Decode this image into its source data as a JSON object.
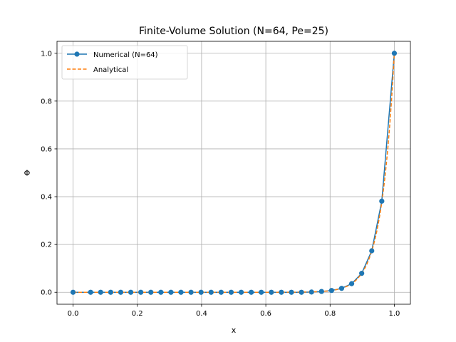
{
  "chart_data": {
    "type": "line",
    "title": "Finite-Volume Solution (N=64, Pe=25)",
    "xlabel": "x",
    "ylabel": "Φ",
    "xlim": [
      -0.05,
      1.05
    ],
    "ylim": [
      -0.05,
      1.05
    ],
    "xticks": [
      0.0,
      0.2,
      0.4,
      0.6,
      0.8,
      1.0
    ],
    "xtick_labels": [
      "0.0",
      "0.2",
      "0.4",
      "0.6",
      "0.8",
      "1.0"
    ],
    "yticks": [
      0.0,
      0.2,
      0.4,
      0.6,
      0.8,
      1.0
    ],
    "ytick_labels": [
      "0.0",
      "0.2",
      "0.4",
      "0.6",
      "0.8",
      "1.0"
    ],
    "grid": true,
    "legend_position": "top-left",
    "pe": 25,
    "series": [
      {
        "name": "Numerical (N=64)",
        "color": "#1f77b4",
        "style": "solid-with-markers",
        "x": [
          0,
          0.0547,
          0.0859,
          0.1172,
          0.1484,
          0.1797,
          0.2109,
          0.2422,
          0.2734,
          0.3047,
          0.3359,
          0.3672,
          0.3984,
          0.4297,
          0.4609,
          0.4922,
          0.5234,
          0.5547,
          0.5859,
          0.6172,
          0.6484,
          0.6797,
          0.7109,
          0.7422,
          0.7734,
          0.8047,
          0.8359,
          0.8672,
          0.8984,
          0.9297,
          0.9609,
          1.0
        ],
        "y": [
          0,
          0,
          0,
          0,
          0,
          0,
          0,
          0,
          0,
          0,
          0,
          0,
          0,
          0,
          0,
          0,
          0,
          0,
          0,
          0,
          0,
          0,
          0,
          0.0011,
          0.0034,
          0.0075,
          0.0165,
          0.0361,
          0.0793,
          0.1736,
          0.3812,
          1.0
        ]
      },
      {
        "name": "Analytical",
        "color": "#ff7f0e",
        "style": "dashed",
        "x": [
          0,
          0.0547,
          0.0859,
          0.1172,
          0.1484,
          0.1797,
          0.2109,
          0.2422,
          0.2734,
          0.3047,
          0.3359,
          0.3672,
          0.3984,
          0.4297,
          0.4609,
          0.4922,
          0.5234,
          0.5547,
          0.5859,
          0.6172,
          0.6484,
          0.6797,
          0.7109,
          0.7422,
          0.7734,
          0.8047,
          0.8359,
          0.8672,
          0.8984,
          0.9297,
          0.9609,
          1.0
        ],
        "y": [
          0,
          0,
          0,
          0,
          0,
          0,
          0,
          0,
          0,
          0,
          0,
          0,
          0,
          0,
          0,
          0,
          0,
          0,
          0,
          0,
          0,
          0,
          0,
          0.0011,
          0.0034,
          0.0075,
          0.0165,
          0.0361,
          0.0793,
          0.1736,
          0.3812,
          1.0
        ]
      }
    ]
  }
}
